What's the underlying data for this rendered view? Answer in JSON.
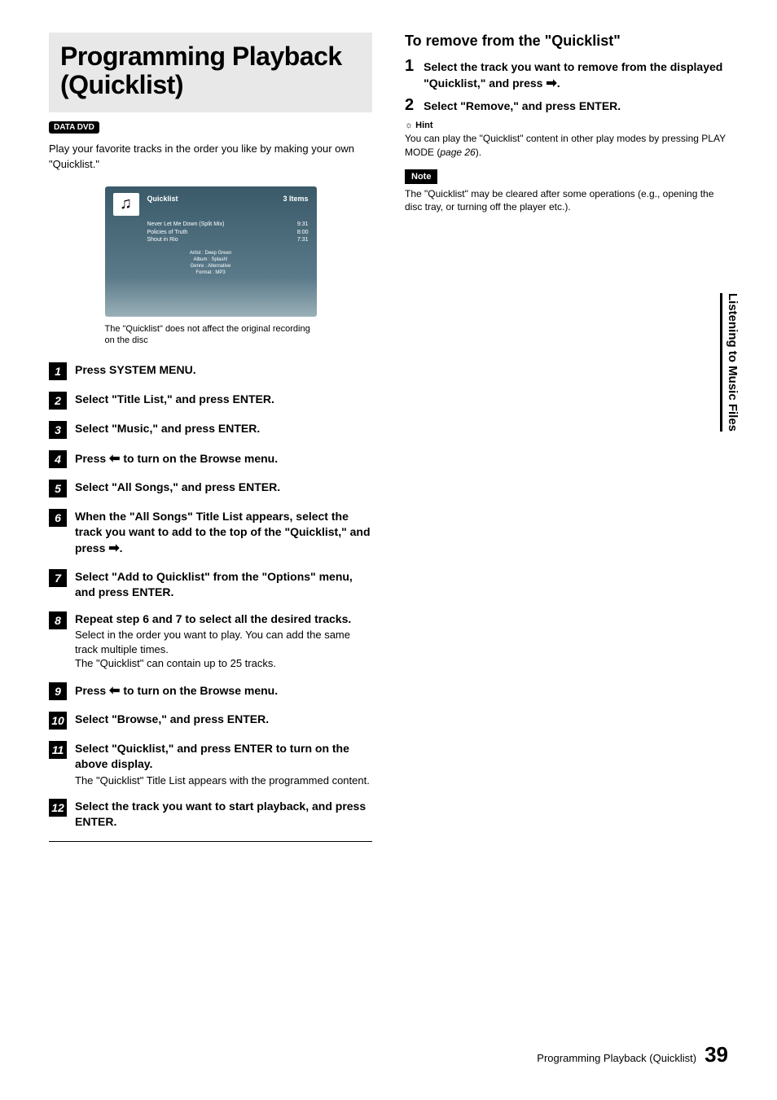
{
  "title": "Programming Playback (Quicklist)",
  "badge": "DATA DVD",
  "intro": "Play your favorite tracks in the order you like by making your own \"Quicklist.\"",
  "screenshot": {
    "title": "Quicklist",
    "count": "3 Items",
    "rows": [
      {
        "name": "Never Let Me Down (Split Mix)",
        "time": "9:31"
      },
      {
        "name": "Policies of Truth",
        "time": "8:00"
      },
      {
        "name": "Shout in Rio",
        "time": "7:31"
      }
    ],
    "meta": [
      "Artist : Deep Green",
      "Album  : Splash!",
      "Genre  : Alternative",
      "Format : MP3"
    ],
    "music_note": "♫"
  },
  "caption": "The \"Quicklist\" does not affect the original recording on the disc",
  "steps": [
    {
      "n": "1",
      "bold": "Press SYSTEM MENU."
    },
    {
      "n": "2",
      "bold": "Select \"Title List,\" and press ENTER."
    },
    {
      "n": "3",
      "bold": "Select \"Music,\" and press ENTER."
    },
    {
      "n": "4",
      "bold_pre": "Press ",
      "arrow": "←",
      "bold_post": " to turn on the Browse menu."
    },
    {
      "n": "5",
      "bold": "Select \"All Songs,\" and press ENTER."
    },
    {
      "n": "6",
      "bold_pre": "When the \"All Songs\" Title List appears, select the track you want to add to the top of the \"Quicklist,\" and press ",
      "arrow": "→",
      "bold_post": "."
    },
    {
      "n": "7",
      "bold": "Select \"Add to Quicklist\" from the \"Options\" menu, and press ENTER."
    },
    {
      "n": "8",
      "bold": "Repeat step 6 and 7 to select all the desired tracks.",
      "sub": "Select in the order you want to play. You can add the same track multiple times.\nThe \"Quicklist\" can contain up to 25 tracks."
    },
    {
      "n": "9",
      "bold_pre": "Press ",
      "arrow": "←",
      "bold_post": " to turn on the Browse menu."
    },
    {
      "n": "10",
      "bold": "Select \"Browse,\" and press ENTER."
    },
    {
      "n": "11",
      "bold": "Select \"Quicklist,\" and press ENTER to turn on the above display.",
      "sub": "The \"Quicklist\" Title List appears with the programmed content."
    },
    {
      "n": "12",
      "bold": "Select the track you want to start playback, and press ENTER."
    }
  ],
  "right": {
    "title": "To remove from the \"Quicklist\"",
    "steps": [
      {
        "n": "1",
        "text_pre": "Select the track you want to remove from the displayed \"Quicklist,\" and press ",
        "arrow": "→",
        "text_post": "."
      },
      {
        "n": "2",
        "text": "Select \"Remove,\" and press ENTER."
      }
    ],
    "hint_label": "Hint",
    "hint": "You can play the \"Quicklist\" content in other play modes by pressing PLAY MODE (page 26).",
    "note_label": "Note",
    "note": "The \"Quicklist\" may be cleared after some operations (e.g., opening the disc tray, or turning off the player etc.)."
  },
  "side_tab": "Listening to Music Files",
  "footer_text": "Programming Playback (Quicklist)",
  "page_number": "39"
}
